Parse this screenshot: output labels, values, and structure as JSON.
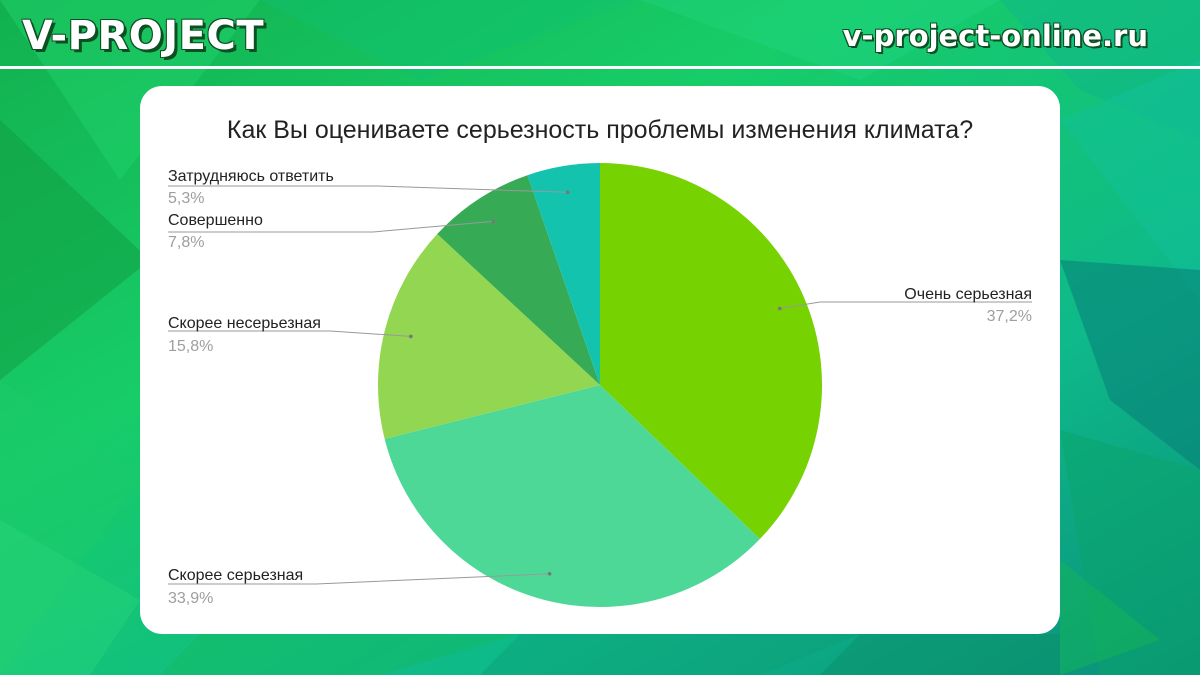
{
  "header": {
    "brand": "V-PROJECT",
    "site": "v-project-online.ru"
  },
  "colors": {
    "background_light": "#16c95e",
    "background_dark": "#0aa88a",
    "card": "#ffffff",
    "leader_line": "#999999"
  },
  "chart_data": {
    "type": "pie",
    "title": "Как Вы оцениваете серьезность проблемы изменения климата?",
    "start": "top, clockwise",
    "slices": [
      {
        "label": "Очень серьезная",
        "value": 37.2,
        "value_label": "37,2%",
        "color": "#76d200"
      },
      {
        "label": "Скорее серьезная",
        "value": 33.9,
        "value_label": "33,9%",
        "color": "#4ed897"
      },
      {
        "label": "Скорее несерьезная",
        "value": 15.8,
        "value_label": "15,8%",
        "color": "#92d652"
      },
      {
        "label": "Совершенно",
        "value": 7.8,
        "value_label": "7,8%",
        "color": "#37aa56"
      },
      {
        "label": "Затрудняюсь ответить",
        "value": 5.3,
        "value_label": "5,3%",
        "color": "#14c3ae"
      }
    ]
  }
}
